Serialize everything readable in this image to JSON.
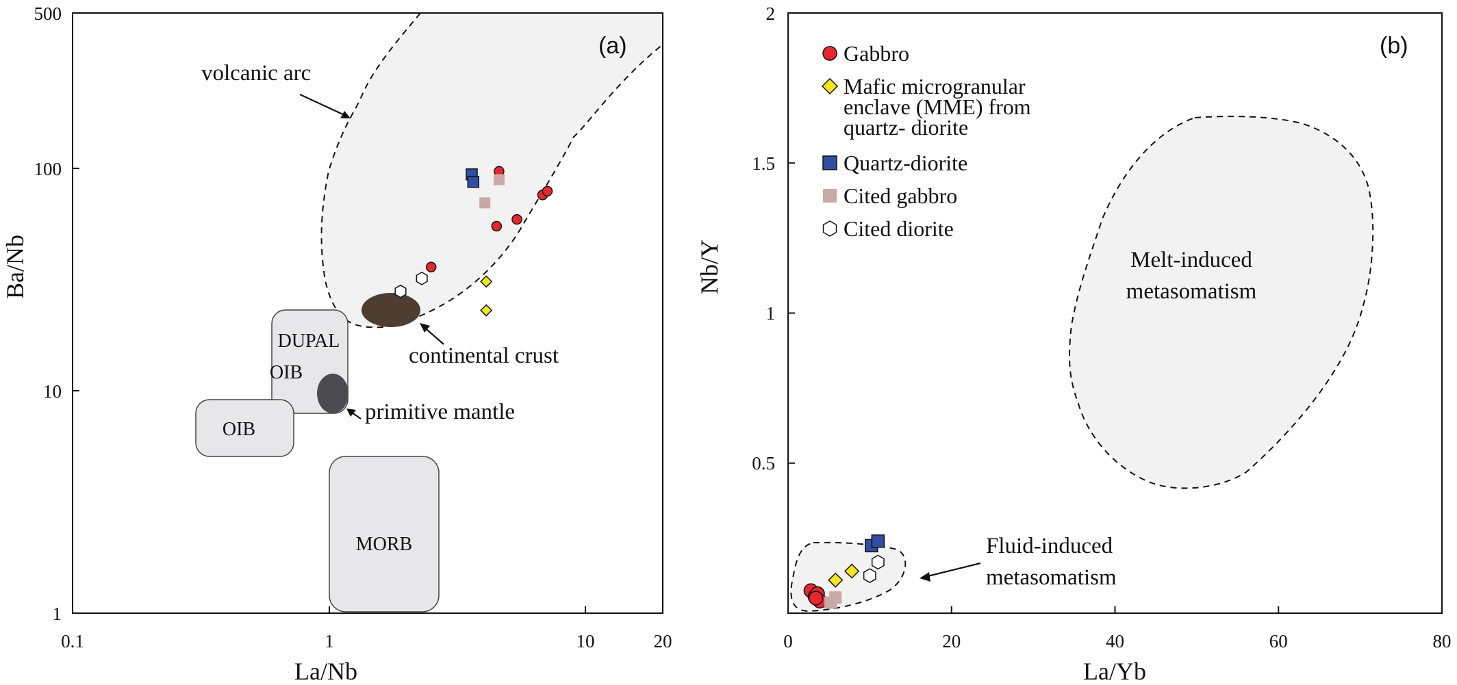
{
  "chart_data": [
    {
      "type": "scatter",
      "panel": "(a)",
      "xlabel": "La/Nb",
      "ylabel": "Ba/Nb",
      "xscale": "log",
      "yscale": "log",
      "xlim": [
        0.1,
        20
      ],
      "ylim": [
        1,
        500
      ],
      "xticks": [
        "0.1",
        "1",
        "10",
        "20"
      ],
      "yticks": [
        "1",
        "10",
        "100",
        "500"
      ],
      "fields": {
        "volcanic_arc": "volcanic arc",
        "continental_crust": "continental crust",
        "primitive_mantle": "primitive mantle",
        "dupal_oib": [
          "DUPAL",
          "OIB"
        ],
        "oib": "OIB",
        "morb": "MORB"
      },
      "series": [
        {
          "name": "Gabbro",
          "points": [
            [
              4.6,
              97
            ],
            [
              6.8,
              76
            ],
            [
              7.1,
              79
            ],
            [
              4.5,
              55
            ],
            [
              5.4,
              59
            ],
            [
              2.5,
              36
            ]
          ]
        },
        {
          "name": "Mafic microgranular enclave (MME) from quartz- diorite",
          "points": [
            [
              4.1,
              31
            ],
            [
              4.1,
              23
            ]
          ]
        },
        {
          "name": "Quartz-diorite",
          "points": [
            [
              3.6,
              94
            ],
            [
              3.65,
              87
            ]
          ]
        },
        {
          "name": "Cited gabbro",
          "points": [
            [
              4.6,
              89
            ],
            [
              4.05,
              70
            ]
          ]
        },
        {
          "name": "Cited diorite",
          "points": [
            [
              1.9,
              28
            ],
            [
              2.3,
              32
            ]
          ]
        }
      ]
    },
    {
      "type": "scatter",
      "panel": "(b)",
      "xlabel": "La/Yb",
      "ylabel": "Nb/Y",
      "xlim": [
        0,
        80
      ],
      "ylim": [
        0,
        2
      ],
      "xticks": [
        "0",
        "20",
        "40",
        "60",
        "80"
      ],
      "yticks": [
        "0.5",
        "1",
        "1.5",
        "2"
      ],
      "fields": {
        "melt": [
          "Melt-induced",
          "metasomatism"
        ],
        "fluid": [
          "Fluid-induced",
          "metasomatism"
        ]
      },
      "legend_position": "top-left",
      "series": [
        {
          "name": "Gabbro",
          "points": [
            [
              2.8,
              0.075
            ],
            [
              3.3,
              0.055
            ],
            [
              3.6,
              0.065
            ],
            [
              3.9,
              0.04
            ],
            [
              3.4,
              0.05
            ]
          ]
        },
        {
          "name": "Mafic microgranular enclave (MME) from quartz- diorite",
          "points": [
            [
              5.8,
              0.11
            ],
            [
              7.8,
              0.14
            ]
          ]
        },
        {
          "name": "Quartz-diorite",
          "points": [
            [
              10.2,
              0.225
            ],
            [
              11.0,
              0.24
            ]
          ]
        },
        {
          "name": "Cited gabbro",
          "points": [
            [
              5.2,
              0.035
            ],
            [
              5.8,
              0.052
            ]
          ]
        },
        {
          "name": "Cited diorite",
          "points": [
            [
              10.0,
              0.125
            ],
            [
              11.0,
              0.17
            ]
          ]
        }
      ]
    }
  ],
  "legend": [
    {
      "key": "gabbro",
      "lines": [
        "Gabbro"
      ],
      "marker": "circle",
      "color": "#e8262c"
    },
    {
      "key": "mme",
      "lines": [
        "Mafic microgranular",
        "enclave (MME) from",
        "quartz- diorite"
      ],
      "marker": "diamond",
      "color": "#f5e61a"
    },
    {
      "key": "qd",
      "lines": [
        "Quartz-diorite"
      ],
      "marker": "square",
      "color": "#2f4fa3"
    },
    {
      "key": "cg",
      "lines": [
        "Cited gabbro"
      ],
      "marker": "square",
      "color": "#c9a9a6"
    },
    {
      "key": "cd",
      "lines": [
        "Cited diorite"
      ],
      "marker": "hexagon",
      "color": "#ffffff"
    }
  ],
  "colors": {
    "field_fill": "#f2f2f2",
    "box_fill": "#e7e7e9",
    "crust": "#4e3d31",
    "mantle": "#4b4b4f"
  }
}
